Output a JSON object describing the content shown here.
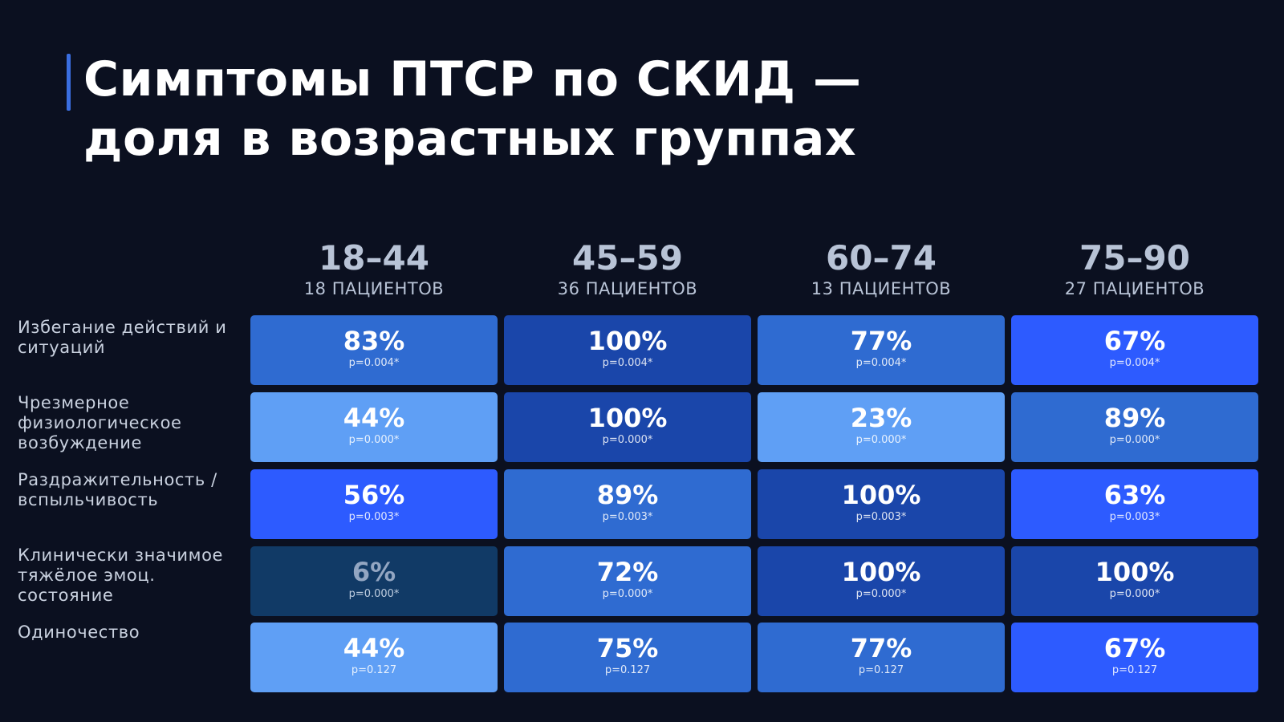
{
  "title_lines": [
    "Симптомы ПТСР по СКИД —",
    "доля в возрастных группах"
  ],
  "colors": {
    "background": "#0b1020",
    "accent": "#3a6ee0",
    "cell_blue": "#2f6bd1",
    "cell_dark": "#1a46aa",
    "cell_light": "#5f9ff5",
    "cell_bright": "#2d5bff",
    "cell_muted": "#113a66"
  },
  "chart_data": {
    "type": "table",
    "unit": "%",
    "columns": [
      {
        "range": "18–44",
        "patients": "18 ПАЦИЕНТОВ"
      },
      {
        "range": "45–59",
        "patients": "36 ПАЦИЕНТОВ"
      },
      {
        "range": "60–74",
        "patients": "13 ПАЦИЕНТОВ"
      },
      {
        "range": "75–90",
        "patients": "27 ПАЦИЕНТОВ"
      }
    ],
    "rows": [
      {
        "label": "Избегание действий и ситуаций",
        "values": [
          83,
          100,
          77,
          67
        ],
        "p": "p=0.004*",
        "colors": [
          "#2f6bd1",
          "#1a46aa",
          "#2f6bd1",
          "#2d5bff"
        ]
      },
      {
        "label": "Чрезмерное физиологическое возбуждение",
        "values": [
          44,
          100,
          23,
          89
        ],
        "p": "p=0.000*",
        "colors": [
          "#5f9ff5",
          "#1a46aa",
          "#5f9ff5",
          "#2f6bd1"
        ]
      },
      {
        "label": "Раздражительность / вспыльчивость",
        "values": [
          56,
          89,
          100,
          63
        ],
        "p": "p=0.003*",
        "colors": [
          "#2d5bff",
          "#2f6bd1",
          "#1a46aa",
          "#2d5bff"
        ]
      },
      {
        "label": "Клинически значимое тяжёлое эмоц. состояние",
        "values": [
          6,
          72,
          100,
          100
        ],
        "p": "p=0.000*",
        "colors": [
          "#113a66",
          "#2f6bd1",
          "#1a46aa",
          "#1a46aa"
        ]
      },
      {
        "label": "Одиночество",
        "values": [
          44,
          75,
          77,
          67
        ],
        "p": "p=0.127",
        "colors": [
          "#5f9ff5",
          "#2f6bd1",
          "#2f6bd1",
          "#2d5bff"
        ]
      }
    ]
  }
}
